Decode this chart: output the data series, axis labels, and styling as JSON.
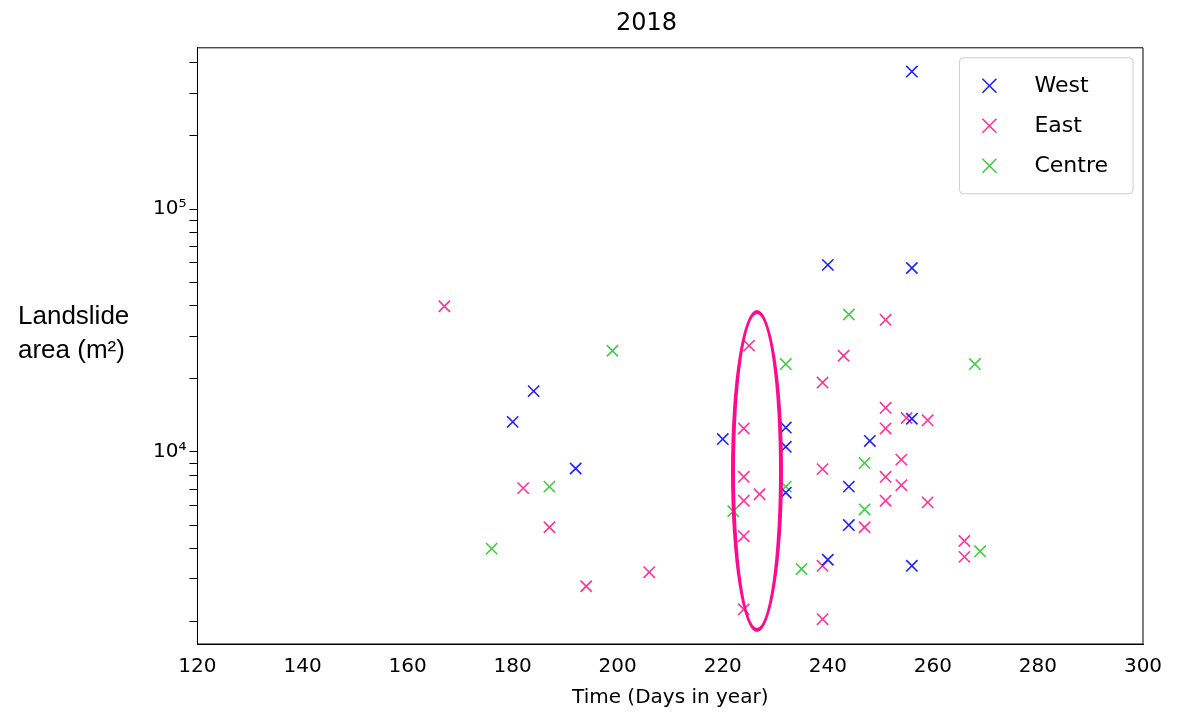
{
  "chart_data": {
    "type": "scatter",
    "title": "2018",
    "xlabel": "Time (Days in year)",
    "ylabel": "Landslide area (m²)",
    "xlim": [
      120,
      300
    ],
    "xticks": [
      120,
      140,
      160,
      180,
      200,
      220,
      240,
      260,
      280,
      300
    ],
    "ylim": [
      1620,
      461000
    ],
    "log": true,
    "yticks": [
      {
        "value": 2000,
        "label": null
      },
      {
        "value": 3000,
        "label": null
      },
      {
        "value": 4000,
        "label": null
      },
      {
        "value": 5000,
        "label": null
      },
      {
        "value": 6000,
        "label": null
      },
      {
        "value": 7000,
        "label": null
      },
      {
        "value": 8000,
        "label": null
      },
      {
        "value": 9000,
        "label": null
      },
      {
        "value": 10000,
        "label": "10⁴"
      },
      {
        "value": 20000,
        "label": null
      },
      {
        "value": 30000,
        "label": null
      },
      {
        "value": 40000,
        "label": null
      },
      {
        "value": 50000,
        "label": null
      },
      {
        "value": 60000,
        "label": null
      },
      {
        "value": 70000,
        "label": null
      },
      {
        "value": 80000,
        "label": null
      },
      {
        "value": 90000,
        "label": null
      },
      {
        "value": 100000,
        "label": "10⁵"
      },
      {
        "value": 200000,
        "label": null
      },
      {
        "value": 300000,
        "label": null
      },
      {
        "value": 400000,
        "label": null
      }
    ],
    "grid": false,
    "legend": "top right",
    "marker": "cross",
    "series": [
      {
        "name": "West",
        "color": "#2020ff",
        "x": [
          256,
          180,
          184,
          192,
          220,
          232,
          232,
          232,
          240,
          248,
          244,
          244,
          240,
          256,
          256,
          256
        ],
        "values": [
          368000,
          13300,
          17800,
          8550,
          11300,
          12600,
          10500,
          6800,
          58900,
          11100,
          7200,
          5000,
          3600,
          3400,
          13700,
          57200
        ]
      },
      {
        "name": "East",
        "color": "#ff3399",
        "x": [
          167,
          182,
          187,
          194,
          206,
          225,
          224,
          224,
          227,
          224,
          224,
          224,
          243,
          239,
          251,
          239,
          251,
          251,
          255,
          259,
          254,
          251,
          254,
          251,
          259,
          247,
          239,
          266,
          266,
          239
        ],
        "values": [
          39800,
          7100,
          4900,
          2800,
          3200,
          27400,
          12500,
          7900,
          6700,
          6300,
          4500,
          2250,
          24900,
          19300,
          35000,
          8500,
          15200,
          12500,
          13800,
          13500,
          9300,
          7900,
          7300,
          6300,
          6200,
          4900,
          3400,
          4300,
          3700,
          2050
        ]
      },
      {
        "name": "Centre",
        "color": "#44cc44",
        "x": [
          176,
          187,
          199,
          244,
          232,
          268,
          247,
          232,
          222,
          247,
          235,
          269
        ],
        "values": [
          4000,
          7200,
          26100,
          36800,
          23000,
          23000,
          9000,
          7200,
          5700,
          5800,
          3300,
          3900
        ]
      }
    ]
  }
}
